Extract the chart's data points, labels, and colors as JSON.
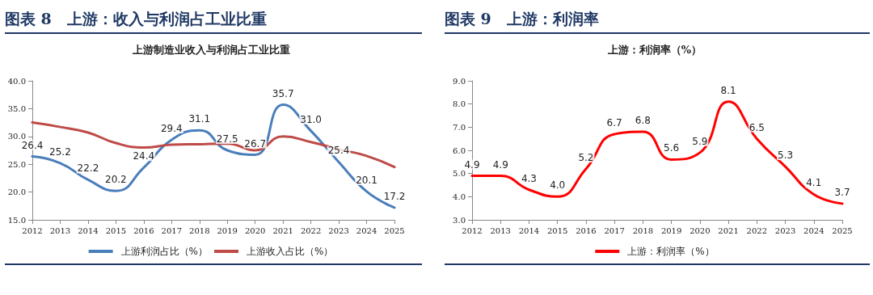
{
  "chart_data": [
    {
      "type": "line",
      "title": "图表 8　上游：收入与利润占工业比重",
      "subtitle": "上游制造业收入与利润占工业比重",
      "categories": [
        "2012",
        "2013",
        "2014",
        "2015",
        "2016",
        "2017",
        "2018",
        "2019",
        "2020",
        "2021",
        "2022",
        "2023",
        "2024",
        "2025"
      ],
      "series": [
        {
          "name": "上游利润占比（%）",
          "color": "#4a7ebb",
          "values": [
            26.4,
            25.2,
            22.2,
            20.2,
            24.4,
            29.4,
            31.1,
            27.5,
            26.7,
            35.7,
            31.0,
            25.4,
            20.1,
            17.2
          ],
          "value_labels": [
            "26.4",
            "25.2",
            "22.2",
            "20.2",
            "24.4",
            "29.4",
            "31.1",
            "27.5",
            "26.7",
            "35.7",
            "31.0",
            "25.4",
            "20.1",
            "17.2"
          ]
        },
        {
          "name": "上游收入占比（%）",
          "color": "#be4b48",
          "values": [
            32.5,
            31.7,
            30.7,
            28.8,
            28.0,
            28.5,
            28.6,
            28.7,
            27.5,
            30.0,
            29.0,
            27.7,
            26.5,
            24.5
          ]
        }
      ],
      "ylim": [
        15,
        40
      ],
      "yticks": [
        {
          "value": 15,
          "label": "15.0"
        },
        {
          "value": 20,
          "label": "20.0"
        },
        {
          "value": 25,
          "label": "25.0"
        },
        {
          "value": 30,
          "label": "30.0"
        },
        {
          "value": 35,
          "label": "35.0"
        },
        {
          "value": 40,
          "label": "40.0"
        }
      ],
      "grid": false,
      "legend": "bottom",
      "marker": "none",
      "line_style": "solid"
    },
    {
      "type": "line",
      "title": "图表 9　上游：利润率",
      "subtitle": "上游：利润率（%）",
      "categories": [
        "2012",
        "2013",
        "2014",
        "2015",
        "2016",
        "2017",
        "2018",
        "2019",
        "2020",
        "2021",
        "2022",
        "2023",
        "2024",
        "2025"
      ],
      "series": [
        {
          "name": "上游：利润率（%）",
          "color": "#ff0000",
          "values": [
            4.9,
            4.9,
            4.3,
            4.0,
            5.2,
            6.7,
            6.8,
            5.6,
            5.9,
            8.1,
            6.5,
            5.3,
            4.1,
            3.7
          ],
          "value_labels": [
            "4.9",
            "4.9",
            "4.3",
            "4.0",
            "5.2",
            "6.7",
            "6.8",
            "5.6",
            "5.9",
            "8.1",
            "6.5",
            "5.3",
            "4.1",
            "3.7"
          ]
        }
      ],
      "ylim": [
        3,
        9
      ],
      "yticks": [
        {
          "value": 3,
          "label": "3.0"
        },
        {
          "value": 4,
          "label": "4.0"
        },
        {
          "value": 5,
          "label": "5.0"
        },
        {
          "value": 6,
          "label": "6.0"
        },
        {
          "value": 7,
          "label": "7.0"
        },
        {
          "value": 8,
          "label": "8.0"
        },
        {
          "value": 9,
          "label": "9.0"
        }
      ],
      "grid": false,
      "legend": "bottom",
      "marker": "none",
      "line_style": "solid"
    }
  ]
}
